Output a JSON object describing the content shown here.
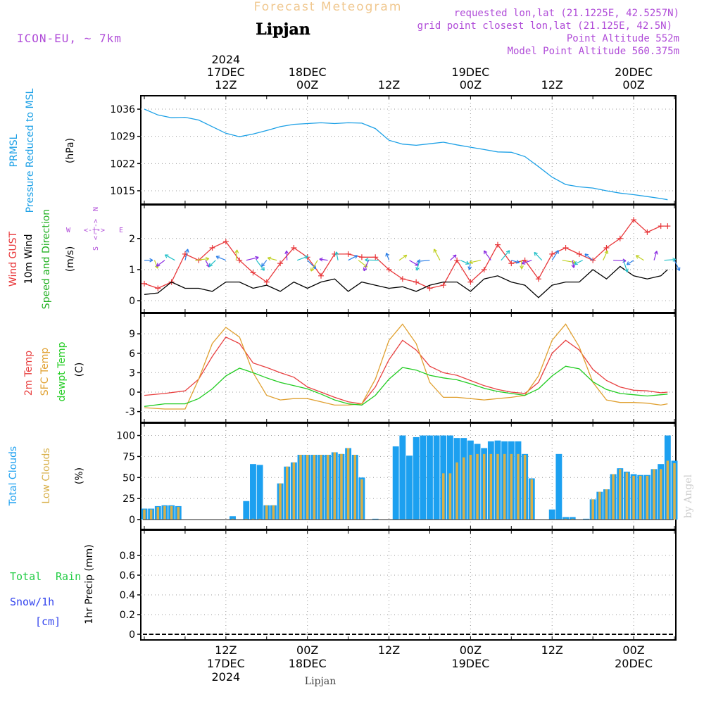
{
  "header": {
    "title": "Forecast Meteogram",
    "location": "Lipjan",
    "model": "ICON-EU, ~ 7km",
    "requested": "requested lon,lat (21.1225E, 42.5257N)",
    "grid_point": "grid point closest lon,lat (21.125E, 42.5N)",
    "point_altitude": "Point Altitude 552m",
    "model_altitude": "Model Point Altitude 560.375m"
  },
  "colors": {
    "pressure": "#1ca0e6",
    "gust": "#e8373a",
    "wind10m": "#000000",
    "direction": "#20b020",
    "temp2m": "#e84040",
    "sfc": "#e0a030",
    "dewpt": "#22cc22",
    "total_clouds": "#1ca0f0",
    "low_clouds": "#d8b04a",
    "rain": "#22cc44",
    "snow": "#3344ee",
    "purple": "#b04cd8",
    "watermark": "#cccccc"
  },
  "footer": {
    "location": "Lipjan",
    "watermark": "by Angel"
  },
  "chart_data": {
    "time_axis": {
      "start": "2024-12-17 00Z",
      "step_hours": 1,
      "hours": 78,
      "top_ticks": [
        {
          "hour": 12,
          "line1": "2024",
          "line2": "17DEC",
          "line3": "12Z"
        },
        {
          "hour": 24,
          "line1": "",
          "line2": "18DEC",
          "line3": "00Z"
        },
        {
          "hour": 36,
          "line1": "",
          "line2": "",
          "line3": "12Z"
        },
        {
          "hour": 48,
          "line1": "",
          "line2": "19DEC",
          "line3": "00Z"
        },
        {
          "hour": 60,
          "line1": "",
          "line2": "",
          "line3": "12Z"
        },
        {
          "hour": 72,
          "line1": "",
          "line2": "20DEC",
          "line3": "00Z"
        }
      ],
      "bottom_ticks": [
        {
          "hour": 12,
          "line1": "12Z",
          "line2": "17DEC",
          "line3": "2024"
        },
        {
          "hour": 24,
          "line1": "00Z",
          "line2": "18DEC",
          "line3": ""
        },
        {
          "hour": 36,
          "line1": "12Z",
          "line2": "",
          "line3": ""
        },
        {
          "hour": 48,
          "line1": "00Z",
          "line2": "19DEC",
          "line3": ""
        },
        {
          "hour": 60,
          "line1": "12Z",
          "line2": "",
          "line3": ""
        },
        {
          "hour": 72,
          "line1": "00Z",
          "line2": "20DEC",
          "line3": ""
        }
      ]
    },
    "panels": [
      {
        "id": "pressure",
        "type": "line",
        "labels": [
          "PRMSL",
          "Pressure Reduced to MSL",
          "(hPa)"
        ],
        "ylim": [
          1013,
          1038
        ],
        "yticks": [
          1015,
          1022,
          1029,
          1036
        ],
        "series": [
          {
            "name": "PRMSL",
            "x": [
              0,
              2,
              4,
              6,
              8,
              10,
              12,
              14,
              16,
              18,
              20,
              22,
              24,
              26,
              28,
              30,
              32,
              34,
              36,
              38,
              40,
              42,
              44,
              46,
              48,
              50,
              52,
              54,
              56,
              58,
              60,
              62,
              64,
              66,
              68,
              70,
              72,
              74,
              76,
              77
            ],
            "values": [
              1036,
              1034.5,
              1033.8,
              1033.9,
              1033.2,
              1031.5,
              1029.8,
              1028.9,
              1029.6,
              1030.5,
              1031.5,
              1032.1,
              1032.3,
              1032.5,
              1032.3,
              1032.5,
              1032.4,
              1031,
              1028,
              1027,
              1026.7,
              1027.1,
              1027.5,
              1026.8,
              1026.2,
              1025.6,
              1025,
              1024.9,
              1023.8,
              1021.2,
              1018.5,
              1016.6,
              1016,
              1015.7,
              1015,
              1014.4,
              1014,
              1013.5,
              1013,
              1012.7
            ]
          }
        ]
      },
      {
        "id": "wind",
        "type": "line",
        "labels": [
          "Wind GUST",
          "10m Wind",
          "Speed and Direction",
          "(m/s)"
        ],
        "compass": {
          "n": "N",
          "s": "S",
          "w": "W",
          "e": "E"
        },
        "ylim": [
          -0.2,
          2.9
        ],
        "yticks": [
          0,
          1,
          2
        ],
        "series": [
          {
            "name": "Wind GUST",
            "x": [
              0,
              2,
              4,
              6,
              8,
              10,
              12,
              14,
              16,
              18,
              20,
              22,
              24,
              26,
              28,
              30,
              32,
              34,
              36,
              38,
              40,
              42,
              44,
              46,
              48,
              50,
              52,
              54,
              56,
              58,
              60,
              62,
              64,
              66,
              68,
              70,
              72,
              74,
              76,
              77
            ],
            "values": [
              0.55,
              0.4,
              0.6,
              1.5,
              1.3,
              1.7,
              1.9,
              1.3,
              0.9,
              0.6,
              1.2,
              1.7,
              1.4,
              0.8,
              1.5,
              1.5,
              1.4,
              1.4,
              1.0,
              0.7,
              0.6,
              0.4,
              0.5,
              1.3,
              0.6,
              1.0,
              1.8,
              1.2,
              1.3,
              0.7,
              1.5,
              1.7,
              1.5,
              1.3,
              1.7,
              2.0,
              2.6,
              2.2,
              2.4,
              2.4
            ]
          },
          {
            "name": "10m Wind",
            "x": [
              0,
              2,
              4,
              6,
              8,
              10,
              12,
              14,
              16,
              18,
              20,
              22,
              24,
              26,
              28,
              30,
              32,
              34,
              36,
              38,
              40,
              42,
              44,
              46,
              48,
              50,
              52,
              54,
              56,
              58,
              60,
              62,
              64,
              66,
              68,
              70,
              72,
              74,
              76,
              77
            ],
            "values": [
              0.2,
              0.25,
              0.6,
              0.4,
              0.4,
              0.3,
              0.6,
              0.6,
              0.4,
              0.5,
              0.3,
              0.6,
              0.4,
              0.6,
              0.7,
              0.3,
              0.6,
              0.5,
              0.4,
              0.45,
              0.3,
              0.5,
              0.6,
              0.6,
              0.3,
              0.7,
              0.8,
              0.6,
              0.5,
              0.1,
              0.5,
              0.6,
              0.6,
              1.0,
              0.7,
              1.1,
              0.8,
              0.7,
              0.8,
              1.0
            ]
          }
        ]
      },
      {
        "id": "temperature",
        "type": "line",
        "labels": [
          "2m Temp",
          "SFC Temp",
          "dewpt Temp",
          "(C)"
        ],
        "ylim": [
          -3.8,
          11.3
        ],
        "yticks": [
          -3,
          0,
          3,
          6,
          9
        ],
        "series": [
          {
            "name": "2m Temp",
            "x": [
              0,
              3,
              6,
              8,
              10,
              12,
              14,
              16,
              18,
              20,
              22,
              24,
              26,
              28,
              30,
              32,
              34,
              36,
              38,
              40,
              42,
              44,
              46,
              48,
              50,
              52,
              54,
              56,
              58,
              60,
              62,
              64,
              66,
              68,
              70,
              72,
              74,
              76,
              77
            ],
            "values": [
              -0.5,
              -0.2,
              0.2,
              2,
              5.5,
              8.5,
              7.5,
              4.5,
              3.8,
              3,
              2.3,
              0.8,
              0,
              -0.8,
              -1.5,
              -1.8,
              0.8,
              5,
              8,
              6.5,
              4,
              3,
              2.6,
              1.8,
              1,
              0.4,
              0,
              -0.2,
              1.5,
              6,
              8,
              6.5,
              3.5,
              1.8,
              0.8,
              0.3,
              0.2,
              -0.1,
              0
            ]
          },
          {
            "name": "SFC Temp",
            "x": [
              0,
              3,
              6,
              8,
              10,
              12,
              14,
              16,
              18,
              20,
              22,
              24,
              26,
              28,
              30,
              32,
              34,
              36,
              38,
              40,
              42,
              44,
              46,
              48,
              50,
              52,
              54,
              56,
              58,
              60,
              62,
              64,
              66,
              68,
              70,
              72,
              74,
              76,
              77
            ],
            "values": [
              -2.4,
              -2.6,
              -2.6,
              2,
              7.5,
              10,
              8.5,
              3,
              -0.5,
              -1.2,
              -1,
              -1,
              -1.5,
              -2,
              -2,
              -1.8,
              2,
              8,
              10.5,
              7.5,
              1.5,
              -0.8,
              -0.8,
              -1,
              -1.2,
              -1,
              -0.8,
              -0.5,
              2.5,
              8,
              10.5,
              7,
              1.5,
              -1.2,
              -1.6,
              -1.6,
              -1.7,
              -2,
              -1.8
            ]
          },
          {
            "name": "dewpt Temp",
            "x": [
              0,
              3,
              6,
              8,
              10,
              12,
              14,
              16,
              18,
              20,
              22,
              24,
              26,
              28,
              30,
              32,
              34,
              36,
              38,
              40,
              42,
              44,
              46,
              48,
              50,
              52,
              54,
              56,
              58,
              60,
              62,
              64,
              66,
              68,
              70,
              72,
              74,
              76,
              77
            ],
            "values": [
              -2.2,
              -1.8,
              -1.8,
              -1,
              0.5,
              2.5,
              3.7,
              3,
              2.2,
              1.5,
              1,
              0.5,
              -0.3,
              -1.2,
              -1.8,
              -2,
              -0.5,
              2,
              3.8,
              3.4,
              2.6,
              2.2,
              1.9,
              1.3,
              0.6,
              0.1,
              -0.2,
              -0.5,
              0.5,
              2.5,
              4,
              3.6,
              1.6,
              0.4,
              -0.2,
              -0.4,
              -0.6,
              -0.4,
              -0.3
            ]
          }
        ]
      },
      {
        "id": "clouds",
        "type": "bar",
        "labels": [
          "Total Clouds",
          "Low Clouds",
          "(%)"
        ],
        "ylim": [
          -5,
          108
        ],
        "yticks": [
          0,
          25,
          50,
          75,
          100
        ],
        "series": [
          {
            "name": "Total Clouds",
            "values": [
              13,
              13,
              16,
              17,
              17,
              16,
              0,
              0,
              0,
              0,
              0,
              0,
              0,
              4,
              0,
              22,
              66,
              65,
              17,
              17,
              43,
              63,
              68,
              77,
              77,
              77,
              77,
              77,
              80,
              78,
              85,
              77,
              50,
              0,
              1,
              0,
              0,
              87,
              100,
              76,
              98,
              100,
              100,
              100,
              100,
              100,
              97,
              97,
              94,
              90,
              85,
              93,
              94,
              93,
              93,
              93,
              78,
              49,
              0,
              0,
              12,
              78,
              3,
              3,
              0,
              1,
              24,
              33,
              36,
              54,
              61,
              57,
              54,
              53,
              53,
              60,
              66,
              100,
              70
            ]
          },
          {
            "name": "Low Clouds",
            "values": [
              12,
              12,
              15,
              16,
              16,
              15,
              0,
              0,
              0,
              0,
              0,
              0,
              0,
              1,
              0,
              1,
              1,
              1,
              17,
              17,
              43,
              63,
              68,
              77,
              77,
              77,
              77,
              77,
              80,
              78,
              85,
              77,
              48,
              0,
              0,
              0,
              0,
              0,
              0,
              0,
              0,
              0,
              0,
              0,
              55,
              55,
              68,
              74,
              77,
              78,
              78,
              78,
              78,
              78,
              78,
              78,
              77,
              48,
              0,
              0,
              0,
              0,
              1,
              1,
              0,
              0,
              24,
              33,
              36,
              54,
              60,
              56,
              52,
              52,
              52,
              60,
              60,
              70,
              67
            ]
          }
        ]
      },
      {
        "id": "precip",
        "type": "bar",
        "labels": [
          "Total",
          "Rain",
          "Snow/1h",
          "[cm]",
          "1hr Precip (mm)"
        ],
        "ylim": [
          0,
          1.0
        ],
        "yticks": [
          0,
          0.2,
          0.4,
          0.6,
          0.8
        ],
        "series": [
          {
            "name": "Rain",
            "values": []
          },
          {
            "name": "Snow/1h",
            "values": []
          }
        ]
      }
    ]
  }
}
